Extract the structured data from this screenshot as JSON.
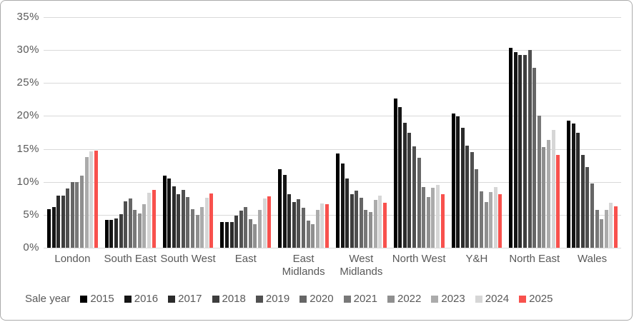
{
  "frame": {
    "background": "#ffffff",
    "border_color": "#ababab"
  },
  "chart_data": {
    "type": "bar",
    "title": "",
    "legend_title": "Sale year",
    "legend_position": "bottom",
    "grid": true,
    "ylim": [
      0,
      35
    ],
    "ytick_step": 5,
    "yticks": [
      "0%",
      "5%",
      "10%",
      "15%",
      "20%",
      "25%",
      "30%",
      "35%"
    ],
    "categories": [
      "London",
      "South East",
      "South West",
      "East",
      "East Midlands",
      "West Midlands",
      "North West",
      "Y&H",
      "North East",
      "Wales"
    ],
    "series": [
      {
        "name": "2015",
        "color": "#000000",
        "values": [
          5.9,
          4.2,
          10.9,
          3.9,
          11.9,
          14.3,
          22.7,
          20.4,
          30.4,
          19.3
        ]
      },
      {
        "name": "2016",
        "color": "#151515",
        "values": [
          6.2,
          4.2,
          10.5,
          3.9,
          11.1,
          12.8,
          21.4,
          19.9,
          29.7,
          18.9
        ]
      },
      {
        "name": "2017",
        "color": "#2b2b2b",
        "values": [
          7.9,
          4.4,
          9.3,
          3.9,
          8.1,
          10.5,
          19.0,
          18.2,
          29.3,
          17.5
        ]
      },
      {
        "name": "2018",
        "color": "#3d3d3d",
        "values": [
          7.9,
          5.1,
          8.1,
          4.9,
          6.9,
          8.1,
          17.4,
          15.5,
          29.3,
          14.1
        ]
      },
      {
        "name": "2019",
        "color": "#505050",
        "values": [
          9.0,
          7.1,
          8.8,
          5.6,
          7.4,
          8.7,
          15.4,
          14.5,
          30.0,
          12.2
        ]
      },
      {
        "name": "2020",
        "color": "#666666",
        "values": [
          10.0,
          7.5,
          7.7,
          6.2,
          6.1,
          7.6,
          13.7,
          11.9,
          27.3,
          9.8
        ]
      },
      {
        "name": "2021",
        "color": "#787878",
        "values": [
          10.0,
          5.8,
          5.9,
          4.3,
          4.1,
          5.8,
          9.2,
          8.6,
          20.1,
          5.8
        ]
      },
      {
        "name": "2022",
        "color": "#8f8f8f",
        "values": [
          11.0,
          5.2,
          5.0,
          3.6,
          3.6,
          5.4,
          7.7,
          6.9,
          15.3,
          4.3
        ]
      },
      {
        "name": "2023",
        "color": "#ababab",
        "values": [
          13.8,
          6.6,
          6.2,
          5.8,
          5.7,
          7.3,
          9.1,
          8.5,
          16.4,
          5.7
        ]
      },
      {
        "name": "2024",
        "color": "#d6d6d6",
        "values": [
          14.6,
          8.4,
          7.6,
          7.5,
          6.7,
          7.9,
          9.5,
          9.2,
          17.9,
          6.8
        ]
      },
      {
        "name": "2025",
        "color": "#f8514d",
        "values": [
          14.7,
          8.8,
          8.2,
          7.8,
          6.6,
          6.8,
          8.1,
          8.1,
          14.1,
          6.3
        ]
      }
    ],
    "colors": {
      "gridline": "#d9d9d9",
      "axis_text": "#595959",
      "category_text": "#595959",
      "legend_text": "#595959"
    }
  }
}
